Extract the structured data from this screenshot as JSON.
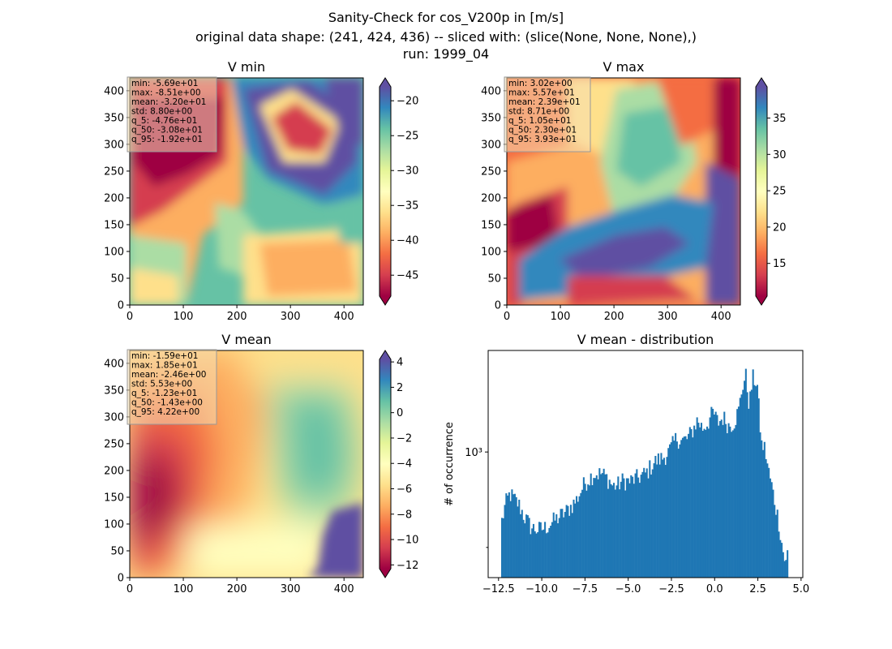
{
  "figure": {
    "title_lines": [
      "Sanity-Check for cos_V200p in [m/s]",
      "original data shape: (241, 424, 436) -- sliced with: (slice(None, None, None),)",
      "run: 1999_04"
    ]
  },
  "colormap": {
    "name": "Spectral",
    "stops": [
      "#9e0142",
      "#d53e4f",
      "#f46d43",
      "#fdae61",
      "#fee08b",
      "#ffffbf",
      "#e6f598",
      "#abdda4",
      "#66c2a5",
      "#3288bd",
      "#5e4fa2"
    ]
  },
  "chart_data": [
    {
      "type": "heatmap",
      "title": "V min",
      "xlim": [
        0,
        436
      ],
      "ylim": [
        0,
        424
      ],
      "xticks": [
        "0",
        "100",
        "200",
        "300",
        "400"
      ],
      "yticks": [
        "0",
        "50",
        "100",
        "150",
        "200",
        "250",
        "300",
        "350",
        "400"
      ],
      "colorbar": {
        "range": [
          -48,
          -18
        ],
        "ticks": [
          "−20",
          "−25",
          "−30",
          "−35",
          "−40",
          "−45"
        ],
        "tick_values": [
          -20,
          -25,
          -30,
          -35,
          -40,
          -45
        ],
        "extend": "both"
      },
      "stats": [
        "min: -5.69e+01",
        "max: -8.51e+00",
        "mean: -3.20e+01",
        "std: 8.80e+00",
        "q_5: -4.76e+01",
        "q_50: -3.08e+01",
        "q_95: -1.92e+01"
      ]
    },
    {
      "type": "heatmap",
      "title": "V max",
      "xlim": [
        0,
        436
      ],
      "ylim": [
        0,
        424
      ],
      "xticks": [
        "0",
        "100",
        "200",
        "300",
        "400"
      ],
      "yticks": [
        "0",
        "50",
        "100",
        "150",
        "200",
        "250",
        "300",
        "350",
        "400"
      ],
      "colorbar": {
        "range": [
          10.5,
          39.3
        ],
        "ticks": [
          "15",
          "20",
          "25",
          "30",
          "35"
        ],
        "tick_values": [
          15,
          20,
          25,
          30,
          35
        ],
        "extend": "both"
      },
      "stats": [
        "min: 3.02e+00",
        "max: 5.57e+01",
        "mean: 2.39e+01",
        "std: 8.71e+00",
        "q_5: 1.05e+01",
        "q_50: 2.30e+01",
        "q_95: 3.93e+01"
      ]
    },
    {
      "type": "heatmap",
      "title": "V mean",
      "xlim": [
        0,
        436
      ],
      "ylim": [
        0,
        424
      ],
      "xticks": [
        "0",
        "100",
        "200",
        "300",
        "400"
      ],
      "yticks": [
        "0",
        "50",
        "100",
        "150",
        "200",
        "250",
        "300",
        "350",
        "400"
      ],
      "colorbar": {
        "range": [
          -12.3,
          4.2
        ],
        "ticks": [
          "4",
          "2",
          "0",
          "−2",
          "−4",
          "−6",
          "−8",
          "−10",
          "−12"
        ],
        "tick_values": [
          4,
          2,
          0,
          -2,
          -4,
          -6,
          -8,
          -10,
          -12
        ],
        "extend": "both"
      },
      "stats": [
        "min: -1.59e+01",
        "max: 1.85e+01",
        "mean: -2.46e+00",
        "std: 5.53e+00",
        "q_5: -1.23e+01",
        "q_50: -1.43e+00",
        "q_95: 4.22e+00"
      ]
    },
    {
      "type": "bar",
      "title": "V mean - distribution",
      "ylabel": "# of occurrence",
      "yscale": "log",
      "color": "#1f77b4",
      "xlim": [
        -13.1,
        5.1
      ],
      "ylim": [
        205,
        3600
      ],
      "xticks": [
        "−12.5",
        "−10.0",
        "−7.5",
        "−5.0",
        "−2.5",
        "0.0",
        "2.5",
        "5.0"
      ],
      "xtick_values": [
        -12.5,
        -10.0,
        -7.5,
        -5.0,
        -2.5,
        0.0,
        2.5,
        5.0
      ],
      "ytick_label": "10³",
      "ytick_value": 1000,
      "minor_ytick_values": [
        300
      ],
      "x_profile": [
        -12.3,
        -12.1,
        -11.85,
        -11.65,
        -11.3,
        -11.0,
        -10.6,
        -10.2,
        -9.8,
        -9.3,
        -8.6,
        -8.0,
        -7.5,
        -7.0,
        -6.5,
        -6.1,
        -5.9,
        -5.6,
        -5.3,
        -4.9,
        -4.5,
        -4.0,
        -3.5,
        -3.0,
        -2.6,
        -2.2,
        -1.9,
        -1.6,
        -1.3,
        -1.0,
        -0.7,
        -0.4,
        -0.1,
        0.2,
        0.5,
        0.8,
        1.1,
        1.4,
        1.6,
        1.8,
        2.0,
        2.2,
        2.45,
        2.7,
        2.9,
        3.1,
        3.3,
        3.5,
        3.7,
        3.85,
        4.0,
        4.15,
        4.22
      ],
      "y_profile": [
        420,
        520,
        590,
        560,
        510,
        440,
        385,
        375,
        385,
        420,
        470,
        545,
        680,
        760,
        760,
        700,
        650,
        660,
        700,
        690,
        720,
        760,
        880,
        930,
        1020,
        1200,
        1150,
        1180,
        1300,
        1500,
        1350,
        1450,
        1650,
        1450,
        1550,
        1400,
        1450,
        1700,
        2300,
        2600,
        1800,
        2550,
        2400,
        1100,
        1050,
        800,
        650,
        520,
        420,
        330,
        270,
        240,
        290
      ]
    }
  ]
}
